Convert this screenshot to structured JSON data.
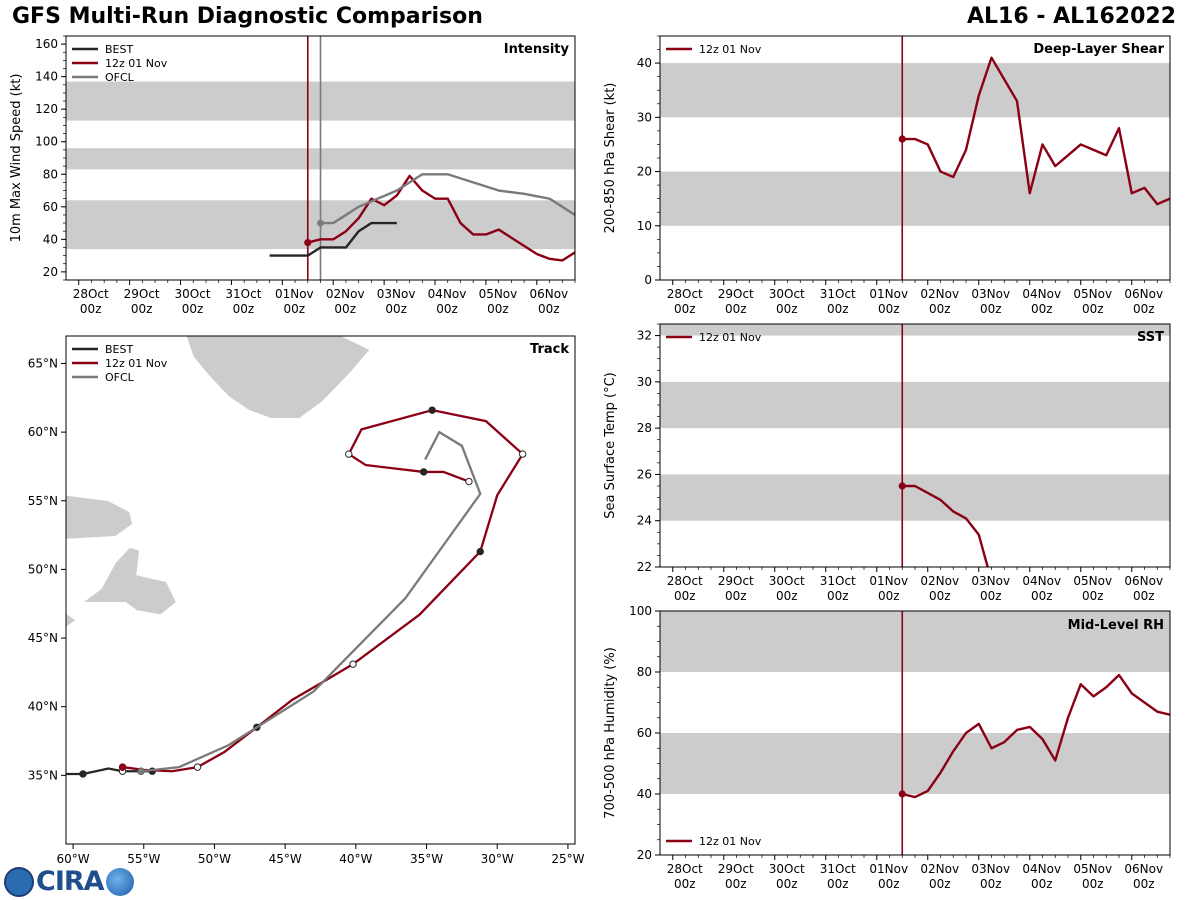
{
  "header": {
    "title": "GFS Multi-Run Diagnostic Comparison",
    "storm_id": "AL16 - AL162022"
  },
  "logo": {
    "text": "CIRA"
  },
  "colors": {
    "best": "#262626",
    "run": "#8b0015",
    "ofcl": "#7a7a7a",
    "band": "#cccccc",
    "land": "#cccccc"
  },
  "time_axis": {
    "labels": [
      "28Oct",
      "29Oct",
      "30Oct",
      "31Oct",
      "01Nov",
      "02Nov",
      "03Nov",
      "04Nov",
      "05Nov",
      "06Nov"
    ],
    "sublabel": "00z",
    "init_day": 4.5,
    "ofcl_init_day": 4.75
  },
  "chart_data": [
    {
      "id": "intensity",
      "type": "line",
      "title": "Intensity",
      "ylabel": "10m Max Wind Speed (kt)",
      "ylim": [
        15,
        165
      ],
      "xlim": [
        -0.25,
        9.75
      ],
      "yticks": [
        20,
        40,
        60,
        80,
        100,
        120,
        140,
        160
      ],
      "bands": [
        [
          34,
          64
        ],
        [
          83,
          96
        ],
        [
          113,
          137
        ]
      ],
      "legend": [
        "BEST",
        "12z 01 Nov",
        "OFCL"
      ],
      "series": [
        {
          "name": "BEST",
          "x": [
            3.75,
            4.0,
            4.25,
            4.5,
            4.75,
            5.0,
            5.25,
            5.5,
            5.75,
            6.0,
            6.25
          ],
          "values": [
            30,
            30,
            30,
            30,
            35,
            35,
            35,
            45,
            50,
            50,
            50
          ],
          "xshift": 0
        },
        {
          "name": "12z 01 Nov",
          "x": [
            4.5,
            4.75,
            5.0,
            5.25,
            5.5,
            5.75,
            6.0,
            6.25,
            6.5,
            6.75,
            7.0,
            7.25,
            7.5,
            7.75,
            8.0,
            8.25,
            8.5,
            8.75,
            9.0,
            9.25,
            9.5,
            9.75
          ],
          "values": [
            38,
            40,
            40,
            45,
            53,
            65,
            61,
            67,
            79,
            70,
            65,
            65,
            50,
            43,
            43,
            46,
            41,
            36,
            31,
            28,
            27,
            32
          ]
        },
        {
          "name": "OFCL",
          "x": [
            4.75,
            5.0,
            5.25,
            5.5,
            6.25,
            6.75,
            7.25,
            7.75,
            8.25,
            8.75,
            9.25,
            9.75
          ],
          "values": [
            50,
            50,
            55,
            60,
            70,
            80,
            80,
            75,
            70,
            68,
            65,
            55
          ]
        }
      ]
    },
    {
      "id": "shear",
      "type": "line",
      "title": "Deep-Layer Shear",
      "ylabel": "200-850 hPa Shear (kt)",
      "ylim": [
        0,
        45
      ],
      "xlim": [
        -0.25,
        9.75
      ],
      "yticks": [
        0,
        10,
        20,
        30,
        40
      ],
      "bands": [
        [
          10,
          20
        ],
        [
          30,
          40
        ]
      ],
      "legend": [
        "12z 01 Nov"
      ],
      "series": [
        {
          "name": "12z 01 Nov",
          "x": [
            4.5,
            4.75,
            5.0,
            5.25,
            5.5,
            5.75,
            6.0,
            6.25,
            6.5,
            6.75,
            7.0,
            7.25,
            7.5,
            7.75,
            8.0,
            8.25,
            8.5,
            8.75,
            9.0,
            9.25,
            9.5,
            9.75
          ],
          "values": [
            26,
            26,
            25,
            20,
            19,
            24,
            34,
            41,
            37,
            33,
            16,
            25,
            21,
            23,
            25,
            24,
            23,
            28,
            16,
            17,
            14,
            15
          ]
        }
      ]
    },
    {
      "id": "sst",
      "type": "line",
      "title": "SST",
      "ylabel": "Sea Surface Temp (°C)",
      "ylim": [
        22,
        32.5
      ],
      "xlim": [
        -0.25,
        9.75
      ],
      "yticks": [
        22,
        24,
        26,
        28,
        30,
        32
      ],
      "bands": [
        [
          24,
          26
        ],
        [
          28,
          30
        ],
        [
          32,
          33
        ]
      ],
      "legend": [
        "12z 01 Nov"
      ],
      "series": [
        {
          "name": "12z 01 Nov",
          "x": [
            4.5,
            4.75,
            5.0,
            5.25,
            5.5,
            5.75,
            6.0,
            6.2
          ],
          "values": [
            25.5,
            25.5,
            25.2,
            24.9,
            24.4,
            24.1,
            23.4,
            21.8
          ]
        }
      ]
    },
    {
      "id": "rh",
      "type": "line",
      "title": "Mid-Level RH",
      "ylabel": "700-500 hPa Humidity (%)",
      "ylim": [
        20,
        100
      ],
      "xlim": [
        -0.25,
        9.75
      ],
      "yticks": [
        20,
        40,
        60,
        80,
        100
      ],
      "bands": [
        [
          40,
          60
        ],
        [
          80,
          100
        ]
      ],
      "legend": [
        "12z 01 Nov"
      ],
      "series": [
        {
          "name": "12z 01 Nov",
          "x": [
            4.5,
            4.75,
            5.0,
            5.25,
            5.5,
            5.75,
            6.0,
            6.25,
            6.5,
            6.75,
            7.0,
            7.25,
            7.5,
            7.75,
            8.0,
            8.25,
            8.5,
            8.75,
            9.0,
            9.25,
            9.5,
            9.75
          ],
          "values": [
            40,
            39,
            41,
            47,
            54,
            60,
            63,
            55,
            57,
            61,
            62,
            58,
            51,
            65,
            76,
            72,
            75,
            79,
            73,
            70,
            67,
            66
          ]
        }
      ]
    },
    {
      "id": "track",
      "type": "scatter",
      "title": "Track",
      "xlim": [
        -60.5,
        -24.5
      ],
      "ylim": [
        30,
        67
      ],
      "xticks": [
        -60,
        -55,
        -50,
        -45,
        -40,
        -35,
        -30,
        -25
      ],
      "xticklabels": [
        "60°W",
        "55°W",
        "50°W",
        "45°W",
        "40°W",
        "35°W",
        "30°W",
        "25°W"
      ],
      "yticks": [
        35,
        40,
        45,
        50,
        55,
        60,
        65
      ],
      "yticklabels": [
        "35°N",
        "40°N",
        "45°N",
        "50°N",
        "55°N",
        "60°N",
        "65°N"
      ],
      "legend": [
        "BEST",
        "12z 01 Nov",
        "OFCL"
      ],
      "series": [
        {
          "name": "BEST",
          "lon": [
            -60.5,
            -59.3,
            -57.5,
            -56.5,
            -55.2,
            -54.4
          ],
          "lat": [
            35.1,
            35.1,
            35.5,
            35.3,
            35.3,
            35.3
          ],
          "markers": [
            [
              -59.3,
              35.1,
              "filled"
            ],
            [
              -56.5,
              35.3,
              "open"
            ],
            [
              -55.2,
              35.3,
              "filled"
            ],
            [
              -54.4,
              35.3,
              "filled"
            ]
          ]
        },
        {
          "name": "12z 01 Nov",
          "lon": [
            -56.5,
            -55.0,
            -53.0,
            -51.2,
            -49.3,
            -47.0,
            -44.5,
            -42.5,
            -40.2,
            -35.5,
            -31.2,
            -30.0,
            -28.2,
            -30.8,
            -34.6,
            -39.6,
            -40.5,
            -39.3,
            -35.2,
            -33.8,
            -32.0
          ],
          "lat": [
            35.6,
            35.4,
            35.3,
            35.6,
            36.7,
            38.5,
            40.5,
            41.7,
            43.1,
            46.7,
            51.3,
            55.4,
            58.4,
            60.8,
            61.6,
            60.2,
            58.4,
            57.6,
            57.1,
            57.1,
            56.4
          ],
          "markers": [
            [
              -56.5,
              35.6,
              "filled"
            ],
            [
              -51.2,
              35.6,
              "open"
            ],
            [
              -47.0,
              38.5,
              "filled"
            ],
            [
              -40.2,
              43.1,
              "open"
            ],
            [
              -31.2,
              51.3,
              "filled"
            ],
            [
              -28.2,
              58.4,
              "open"
            ],
            [
              -34.6,
              61.6,
              "filled"
            ],
            [
              -40.5,
              58.4,
              "open"
            ],
            [
              -35.2,
              57.1,
              "filled"
            ],
            [
              -32.0,
              56.4,
              "open"
            ]
          ]
        },
        {
          "name": "OFCL",
          "lon": [
            -55.2,
            -52.5,
            -49.0,
            -47.0,
            -43.0,
            -36.5,
            -31.2,
            -32.5,
            -34.1,
            -35.1
          ],
          "lat": [
            35.3,
            35.6,
            37.2,
            38.5,
            41.1,
            47.9,
            55.5,
            59.0,
            60.0,
            58.0
          ],
          "markers": []
        }
      ]
    }
  ]
}
